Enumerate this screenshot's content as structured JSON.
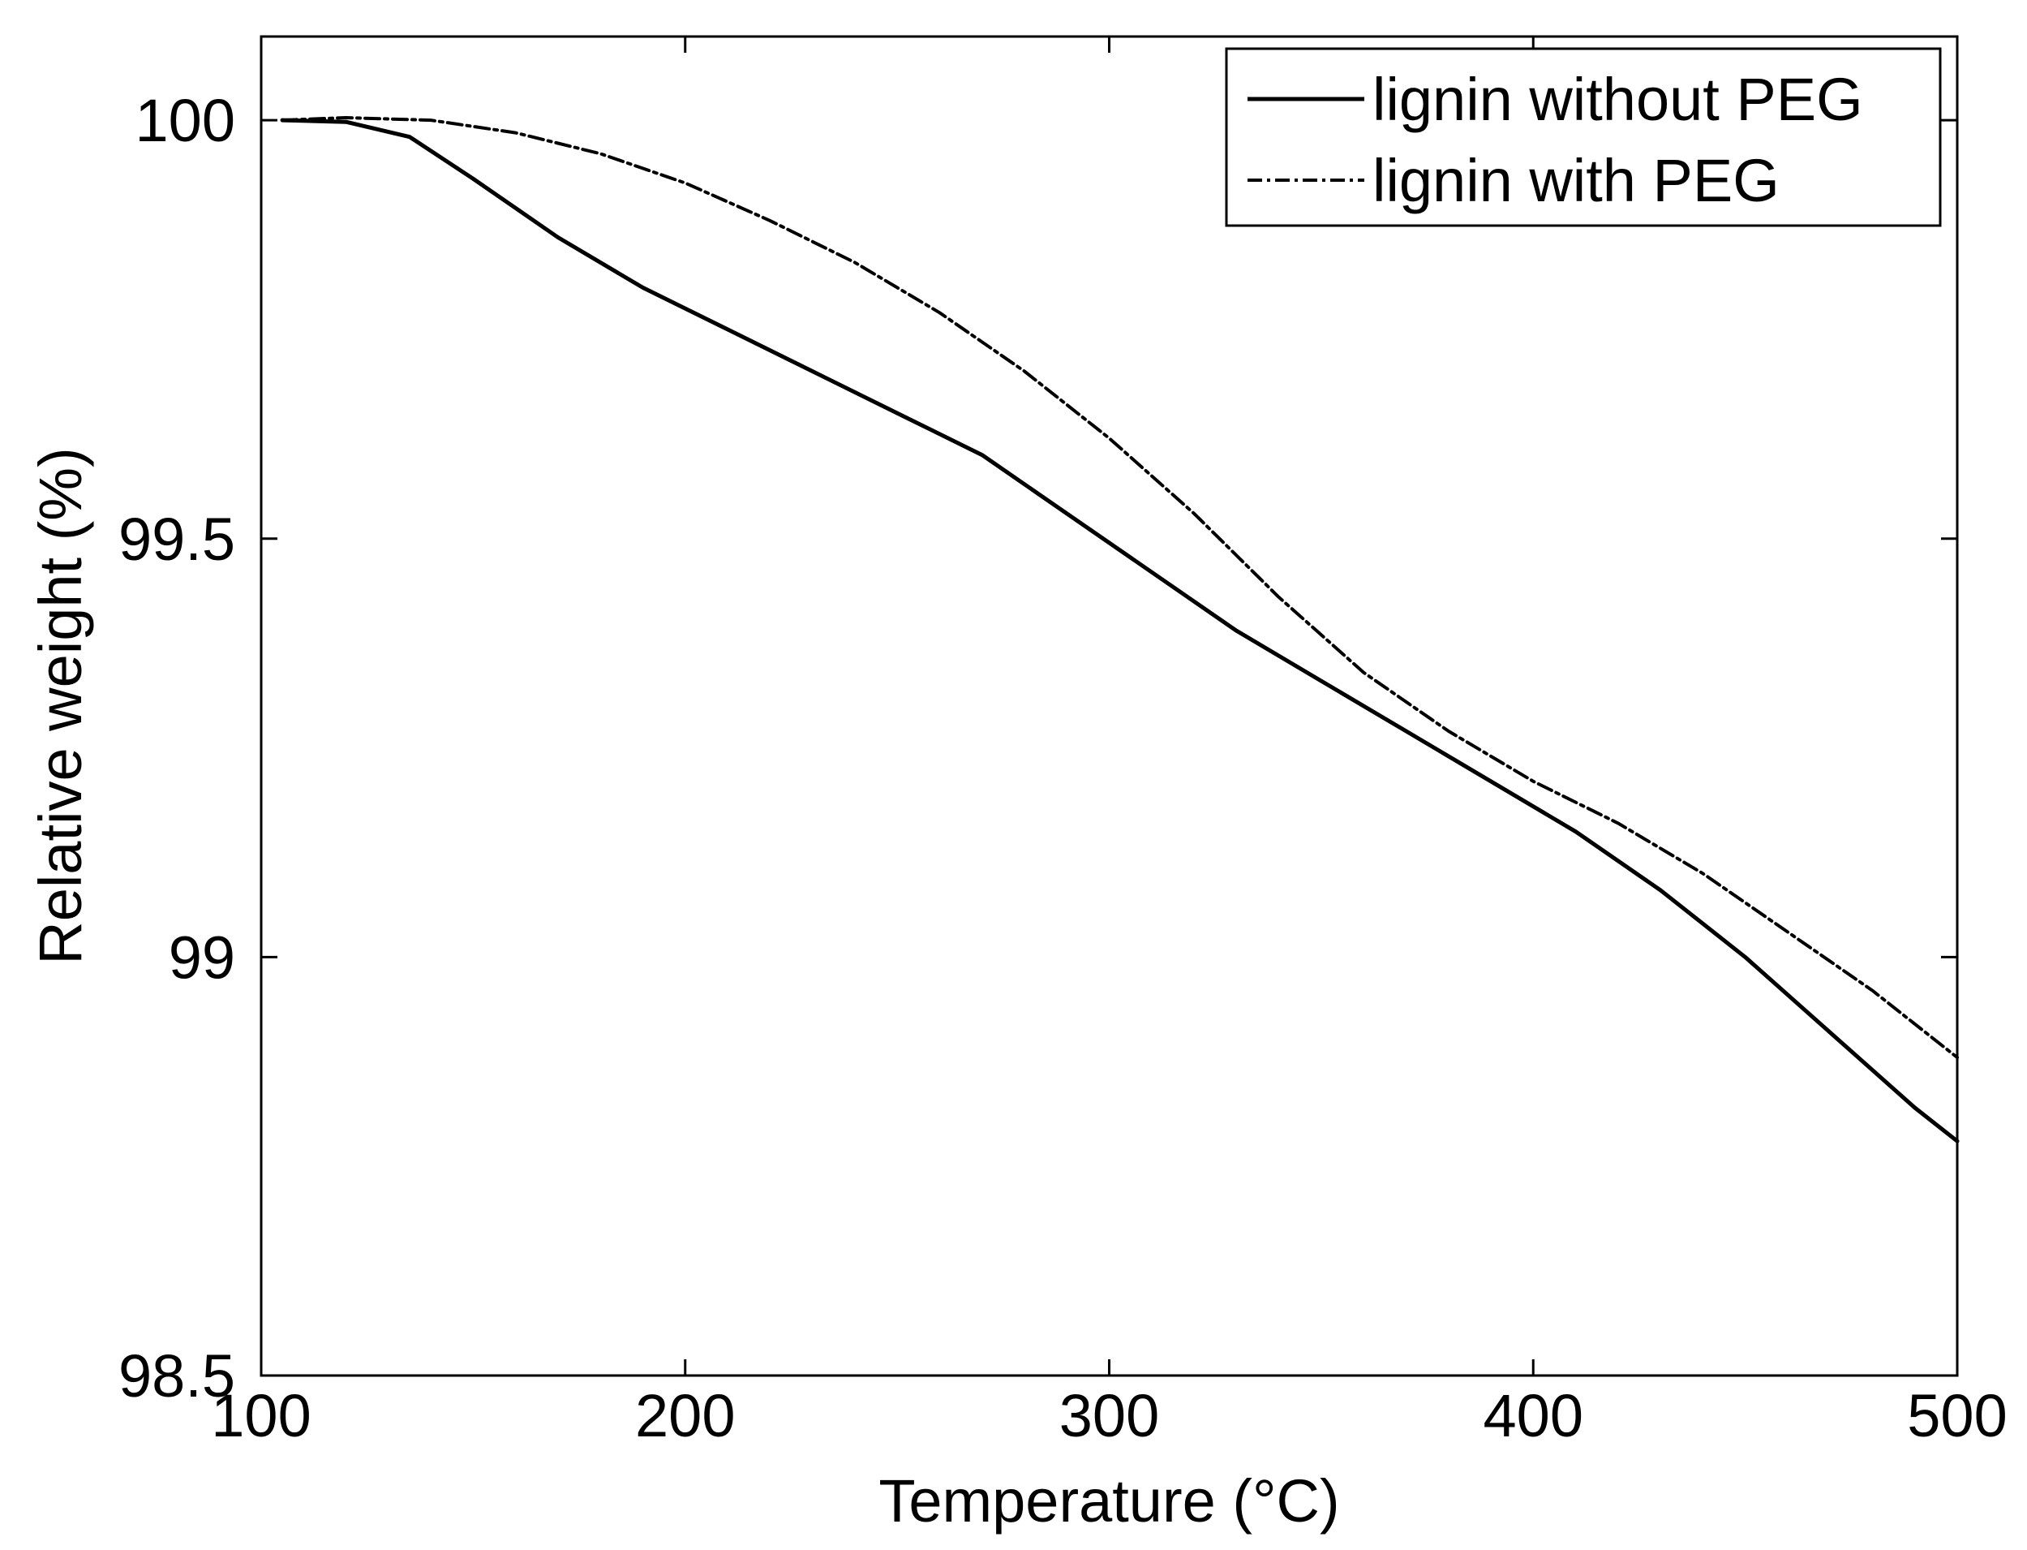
{
  "chart_data": {
    "type": "line",
    "xlabel": "Temperature (°C)",
    "ylabel": "Relative weight (%)",
    "xlim": [
      100,
      500
    ],
    "ylim": [
      98.5,
      100.1
    ],
    "xticks": [
      100,
      200,
      300,
      400,
      500
    ],
    "xtick_labels": [
      "100",
      "200",
      "300",
      "400",
      "500"
    ],
    "yticks": [
      98.5,
      99,
      99.5,
      100
    ],
    "ytick_labels": [
      "98.5",
      "99",
      "99.5",
      "100"
    ],
    "grid": false,
    "legend_position": "top-right",
    "series": [
      {
        "name": "lignin without PEG",
        "style": "solid",
        "color": "#000000",
        "x": [
          105,
          120,
          135,
          150,
          170,
          190,
          210,
          230,
          250,
          270,
          290,
          310,
          330,
          350,
          370,
          390,
          410,
          430,
          450,
          470,
          490,
          500
        ],
        "y": [
          100.0,
          99.998,
          99.98,
          99.93,
          99.86,
          99.8,
          99.75,
          99.7,
          99.65,
          99.6,
          99.53,
          99.46,
          99.39,
          99.33,
          99.27,
          99.21,
          99.15,
          99.08,
          99.0,
          98.91,
          98.82,
          98.78
        ]
      },
      {
        "name": "lignin with PEG",
        "style": "dashdot",
        "color": "#000000",
        "x": [
          105,
          120,
          140,
          160,
          180,
          200,
          220,
          240,
          260,
          280,
          300,
          320,
          340,
          360,
          380,
          400,
          420,
          440,
          460,
          480,
          500
        ],
        "y": [
          100.0,
          100.003,
          100.0,
          99.985,
          99.96,
          99.925,
          99.88,
          99.83,
          99.77,
          99.7,
          99.62,
          99.53,
          99.43,
          99.34,
          99.27,
          99.21,
          99.16,
          99.1,
          99.03,
          98.96,
          98.88
        ]
      }
    ]
  }
}
